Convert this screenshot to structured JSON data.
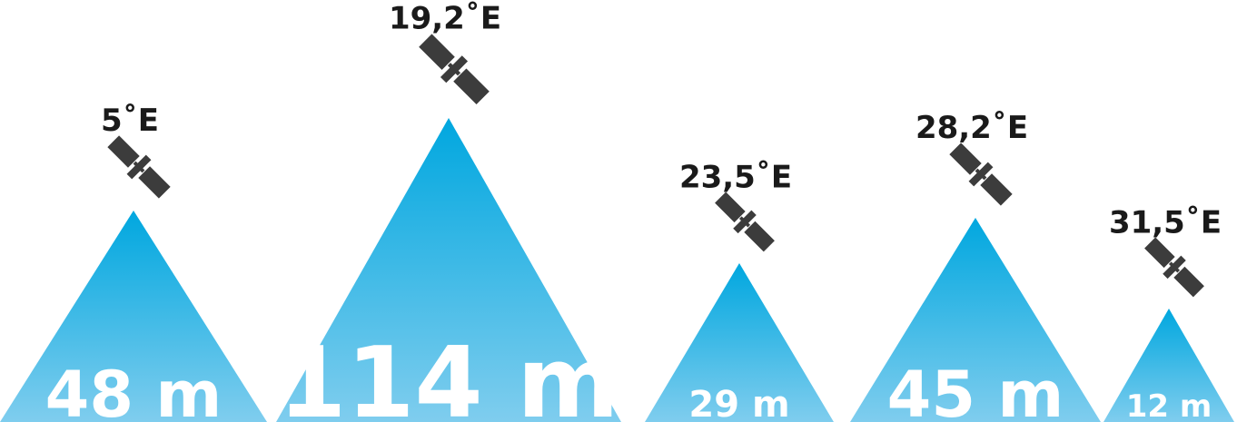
{
  "chart_data": {
    "type": "bar",
    "categories": [
      "5˚E",
      "19,2˚E",
      "23,5˚E",
      "28,2˚E",
      "31,5˚E"
    ],
    "values": [
      48,
      114,
      29,
      45,
      12
    ],
    "value_labels": [
      "48 m",
      "114 m",
      "29 m",
      "45 m",
      "12 m"
    ],
    "unit": "m",
    "bar_shape": "triangle",
    "marker_icon": "satellite-icon",
    "title": "",
    "xlabel": "",
    "ylabel": "",
    "grid": false,
    "legend": "none"
  },
  "colors": {
    "triangle_top": "#00a7df",
    "triangle_bottom": "#7fcdee",
    "satellite_body": "#3c3c3c",
    "position_text": "#1a1a1a",
    "value_text": "#ffffff"
  }
}
